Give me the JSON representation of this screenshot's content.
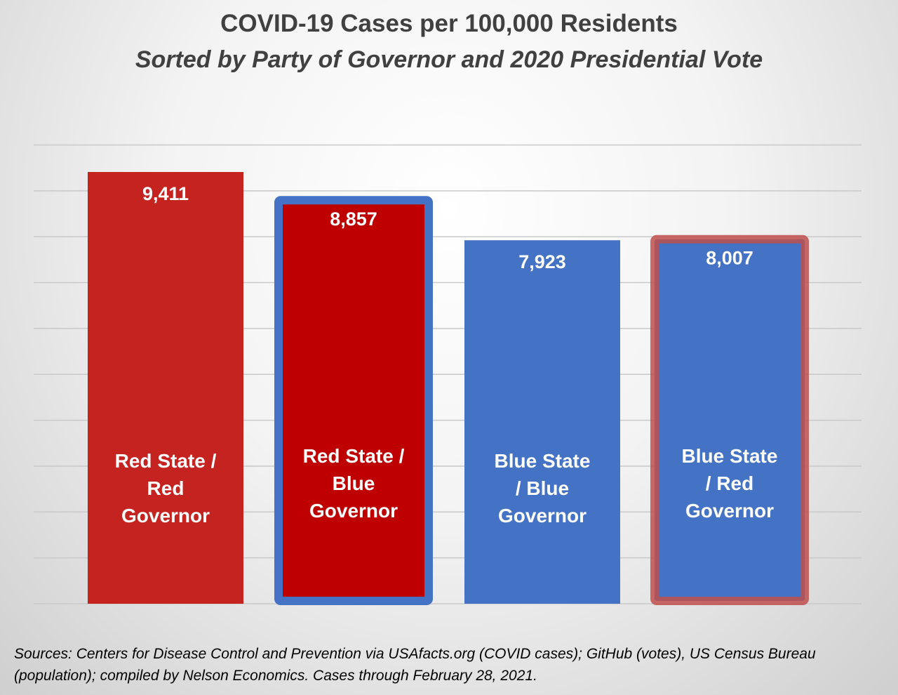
{
  "chart_data": {
    "type": "bar",
    "title": "COVID-19 Cases per 100,000 Residents",
    "subtitle": "Sorted by Party of Governor and 2020 Presidential Vote",
    "categories": [
      [
        "Red State /",
        "Red",
        "Governor"
      ],
      [
        "Red State /",
        "Blue",
        "Governor"
      ],
      [
        "Blue State",
        "/ Blue",
        "Governor"
      ],
      [
        "Blue State",
        "/ Red",
        "Governor"
      ]
    ],
    "values": [
      9411,
      8857,
      7923,
      8007
    ],
    "value_labels": [
      "9,411",
      "8,857",
      "7,923",
      "8,007"
    ],
    "ylim": [
      0,
      10000
    ],
    "grid": true,
    "legend": "none",
    "colors": {
      "fills": [
        "#c52320",
        "#bf0000",
        "#4472c4",
        "#4472c4"
      ],
      "outlines": [
        null,
        "#4472c4",
        null,
        "#c0504d"
      ]
    },
    "source": "Sources: Centers for Disease Control and Prevention via USAfacts.org (COVID cases); GitHub (votes), US Census Bureau (population); compiled by Nelson Economics.  Cases through February 28, 2021."
  }
}
